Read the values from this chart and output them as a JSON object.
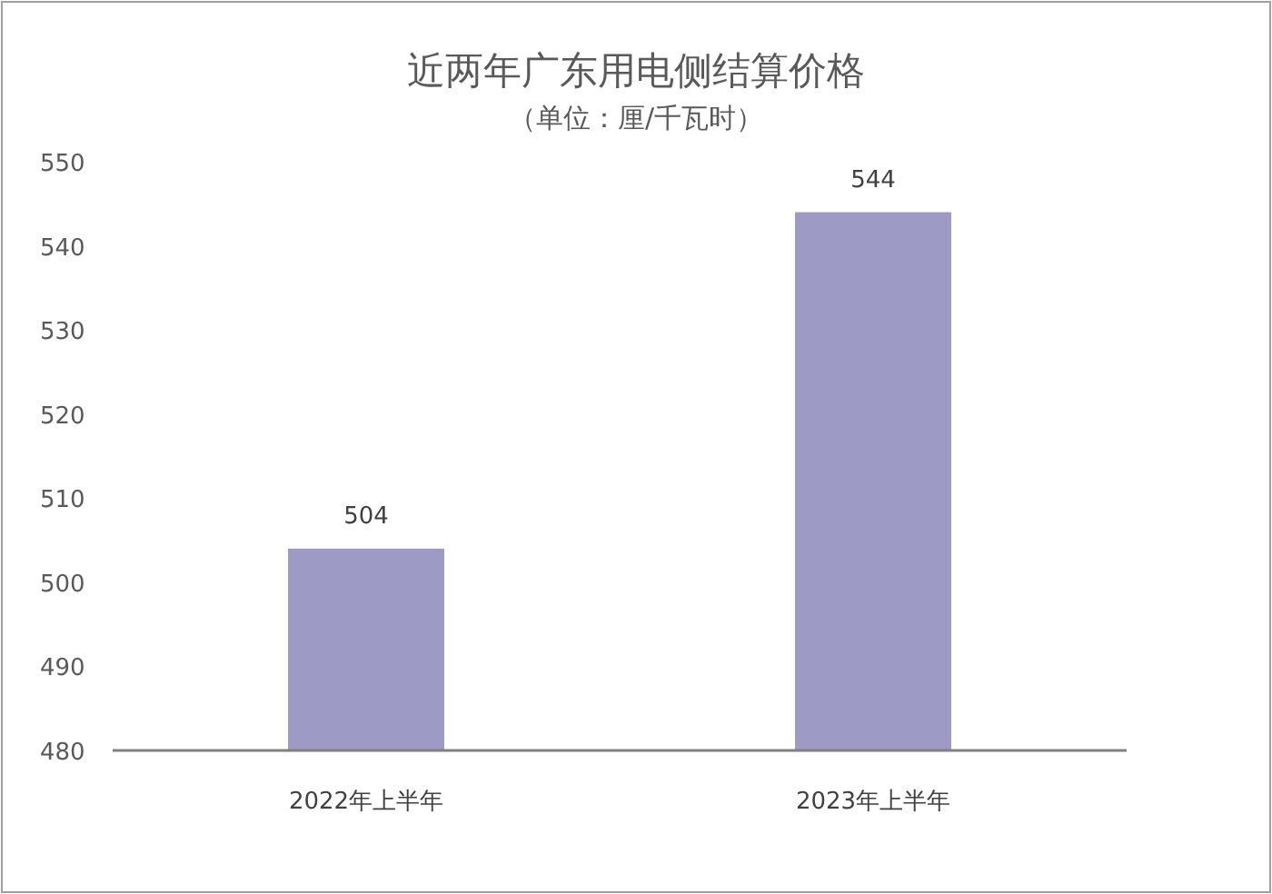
{
  "chart_data": {
    "type": "bar",
    "title": "近两年广东用电侧结算价格",
    "subtitle": "（单位：厘/千瓦时）",
    "categories": [
      "2022年上半年",
      "2023年上半年"
    ],
    "values": [
      504,
      544
    ],
    "color": "#9d9ac6",
    "ylim": [
      480,
      550
    ],
    "yticks": [
      480,
      490,
      500,
      510,
      520,
      530,
      540,
      550
    ],
    "data_labels": true
  }
}
